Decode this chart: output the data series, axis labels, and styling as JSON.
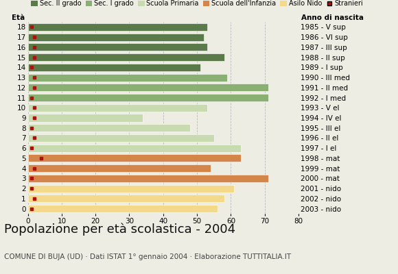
{
  "ages": [
    18,
    17,
    16,
    15,
    14,
    13,
    12,
    11,
    10,
    9,
    8,
    7,
    6,
    5,
    4,
    3,
    2,
    1,
    0
  ],
  "years": [
    "1985 - V sup",
    "1986 - VI sup",
    "1987 - III sup",
    "1988 - II sup",
    "1989 - I sup",
    "1990 - III med",
    "1991 - II med",
    "1992 - I med",
    "1993 - V el",
    "1994 - IV el",
    "1995 - III el",
    "1996 - II el",
    "1997 - I el",
    "1998 - mat",
    "1999 - mat",
    "2000 - mat",
    "2001 - nido",
    "2002 - nido",
    "2003 - nido"
  ],
  "bar_values": [
    53,
    52,
    53,
    58,
    51,
    59,
    71,
    71,
    53,
    34,
    48,
    55,
    63,
    63,
    54,
    71,
    61,
    58,
    56
  ],
  "bar_colors": [
    "#5a7a4a",
    "#5a7a4a",
    "#5a7a4a",
    "#5a7a4a",
    "#5a7a4a",
    "#8aaf72",
    "#8aaf72",
    "#8aaf72",
    "#c8dab0",
    "#c8dab0",
    "#c8dab0",
    "#c8dab0",
    "#c8dab0",
    "#d4854a",
    "#d4854a",
    "#d4854a",
    "#f5d98a",
    "#f5d98a",
    "#f5d98a"
  ],
  "stranieri_values": [
    1,
    2,
    2,
    2,
    1,
    2,
    2,
    1,
    2,
    2,
    1,
    2,
    1,
    4,
    2,
    1,
    1,
    2,
    1
  ],
  "stranieri_color": "#aa1111",
  "legend_labels": [
    "Sec. II grado",
    "Sec. I grado",
    "Scuola Primaria",
    "Scuola dell'Infanzia",
    "Asilo Nido",
    "Stranieri"
  ],
  "legend_colors": [
    "#5a7a4a",
    "#8aaf72",
    "#c8dab0",
    "#d4854a",
    "#f5d98a",
    "#aa1111"
  ],
  "title": "Popolazione per età scolastica - 2004",
  "subtitle": "COMUNE DI BUJA (UD) · Dati ISTAT 1° gennaio 2004 · Elaborazione TUTTITALIA.IT",
  "xlabel_eta": "Età",
  "xlabel_anno": "Anno di nascita",
  "xlim": [
    0,
    80
  ],
  "xticks": [
    0,
    10,
    20,
    30,
    40,
    50,
    60,
    70,
    80
  ],
  "bar_height": 0.75,
  "background_color": "#eeede3",
  "grid_color": "#bbbbbb",
  "title_fontsize": 13,
  "subtitle_fontsize": 7.5,
  "axis_fontsize": 7.5,
  "legend_fontsize": 7.5
}
